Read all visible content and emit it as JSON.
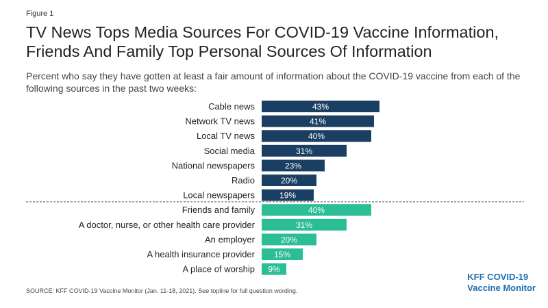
{
  "figure_label": "Figure 1",
  "title_line1": "TV News Tops Media Sources For COVID-19 Vaccine Information,",
  "title_line2": "Friends And Family Top Personal Sources Of Information",
  "subtitle": "Percent who say they have gotten at least a fair amount of information about the COVID-19 vaccine from each of the following sources in the past two weeks:",
  "source": "SOURCE: KFF COVID-19 Vaccine Monitor (Jan. 11-18, 2021). See topline for full question wording.",
  "brand": {
    "line1": "KFF COVID-19",
    "line2": "Vaccine Monitor"
  },
  "colors": {
    "media": "#1b3f63",
    "personal": "#2bbd95",
    "divider": "#555555"
  },
  "chart_data": {
    "type": "bar",
    "orientation": "horizontal",
    "unit": "%",
    "categories": [
      "Cable news",
      "Network TV news",
      "Local TV news",
      "Social media",
      "National newspapers",
      "Radio",
      "Local newspapers",
      "Friends and family",
      "A doctor, nurse, or other health care provider",
      "An employer",
      "A health insurance provider",
      "A place of worship"
    ],
    "values": [
      43,
      41,
      40,
      31,
      23,
      20,
      19,
      40,
      31,
      20,
      15,
      9
    ],
    "data_labels": [
      "43%",
      "41%",
      "40%",
      "31%",
      "23%",
      "20%",
      "19%",
      "40%",
      "31%",
      "20%",
      "15%",
      "9%"
    ],
    "groups": [
      "media",
      "media",
      "media",
      "media",
      "media",
      "media",
      "media",
      "personal",
      "personal",
      "personal",
      "personal",
      "personal"
    ],
    "xlim": [
      0,
      43
    ],
    "grid": false,
    "legend": "none"
  }
}
